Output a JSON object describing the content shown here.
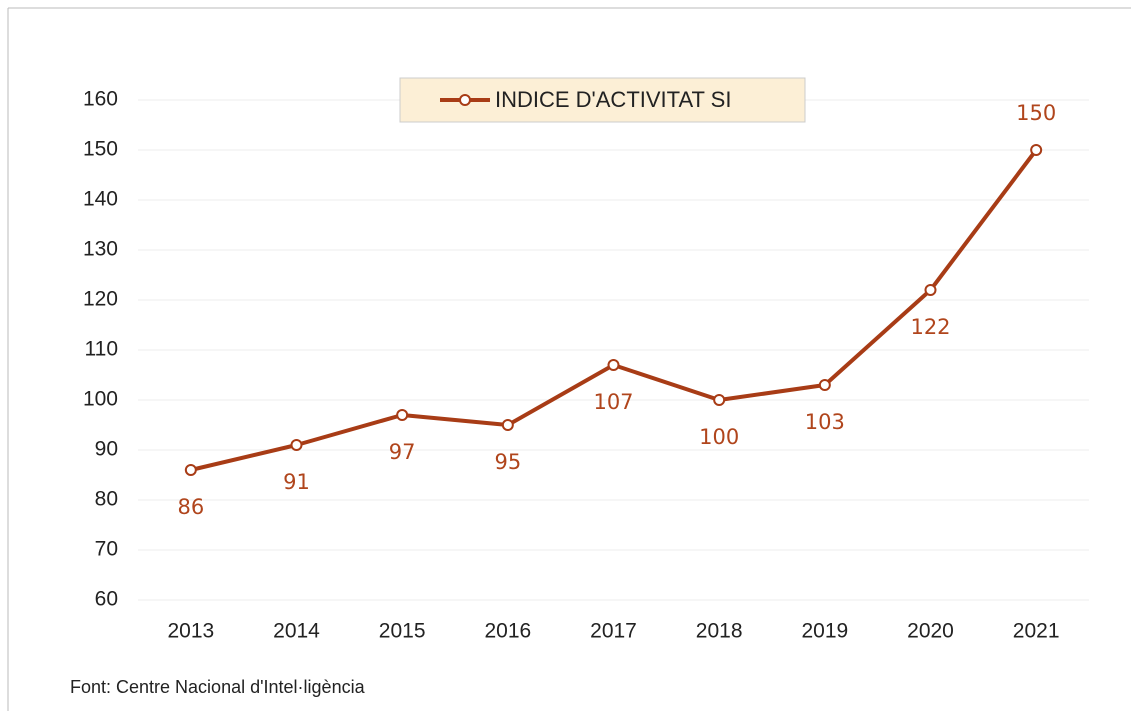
{
  "chart_data": {
    "type": "line",
    "categories": [
      "2013",
      "2014",
      "2015",
      "2016",
      "2017",
      "2018",
      "2019",
      "2020",
      "2021"
    ],
    "series": [
      {
        "name": "INDICE D'ACTIVITAT SI",
        "color": "#a83c16",
        "values": [
          86,
          91,
          97,
          95,
          107,
          100,
          103,
          122,
          150
        ]
      }
    ],
    "ylim": [
      60,
      160
    ],
    "yticks": [
      60,
      70,
      80,
      90,
      100,
      110,
      120,
      130,
      140,
      150,
      160
    ],
    "grid": true,
    "legend": "top",
    "source": "Font: Centre Nacional d'Intel·ligència"
  }
}
